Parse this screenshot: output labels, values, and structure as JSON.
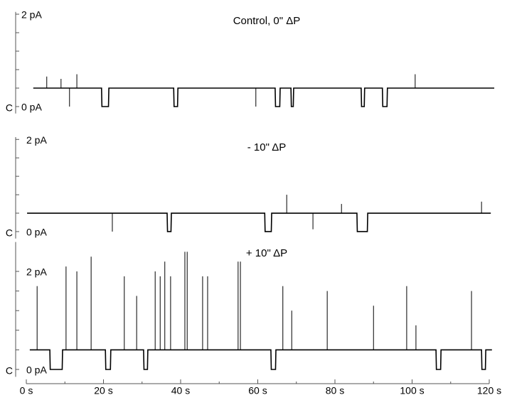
{
  "chart_data": [
    {
      "type": "line",
      "title": "Control, 0\" ΔP",
      "closed_label": "C",
      "x": [
        1.8,
        19.5,
        19.6,
        21.3,
        21.4,
        38.2,
        38.3,
        39.2,
        39.3,
        64.5,
        64.6,
        65.7,
        65.8,
        68.6,
        68.7,
        69.2,
        69.3,
        86.8,
        86.9,
        87.6,
        87.7,
        92.3,
        92.4,
        93.5,
        93.6,
        121.3
      ],
      "values": [
        0.4,
        0.4,
        0,
        0,
        0.4,
        0.4,
        0,
        0,
        0.4,
        0.4,
        0,
        0,
        0.4,
        0.4,
        0,
        0,
        0.4,
        0.4,
        0,
        0,
        0.4,
        0.4,
        0,
        0,
        0.4,
        0.4
      ],
      "open_level": 0.4,
      "spikes": {
        "x": [
          5.3,
          9.0,
          11.2,
          13.1,
          59.5,
          100.8
        ],
        "values": [
          0.65,
          0.6,
          0,
          0.7,
          0,
          0.7
        ]
      },
      "color": "#000000",
      "xlim": [
        0,
        120
      ],
      "ylim": [
        -0.15,
        2.05
      ],
      "yticks": [
        {
          "value": 0,
          "label": "0 pA"
        },
        {
          "value": 2,
          "label": "2 pA"
        }
      ],
      "minor_yticks": [
        0.4,
        0.8,
        1.2,
        1.6
      ]
    },
    {
      "type": "line",
      "title": "- 10\" ΔP",
      "closed_label": "C",
      "x": [
        0.2,
        36.5,
        36.6,
        37.5,
        37.6,
        61.8,
        61.9,
        63.5,
        63.6,
        85.7,
        85.8,
        88.4,
        88.5,
        120.4
      ],
      "values": [
        0.4,
        0.4,
        0,
        0,
        0.4,
        0.4,
        0,
        0,
        0.4,
        0.4,
        0,
        0,
        0.4,
        0.4
      ],
      "open_level": 0.4,
      "spikes": {
        "x": [
          22.3,
          67.5,
          74.3,
          81.7,
          118.0
        ],
        "values": [
          0,
          0.8,
          0.05,
          0.6,
          0.65
        ]
      },
      "color": "#000000",
      "xlim": [
        0,
        120
      ],
      "ylim": [
        -0.15,
        2.05
      ],
      "yticks": [
        {
          "value": 0,
          "label": "0 pA"
        },
        {
          "value": 2,
          "label": "2 pA"
        }
      ],
      "minor_yticks": [
        0.4,
        0.8,
        1.2,
        1.6
      ]
    },
    {
      "type": "line",
      "title": "+ 10\" ΔP",
      "closed_label": "C",
      "x": [
        0.9,
        6.1,
        6.2,
        9.3,
        9.4,
        20.5,
        20.6,
        21.8,
        21.9,
        30.4,
        30.5,
        31.4,
        31.5,
        63.4,
        63.5,
        64.6,
        64.7,
        106.2,
        106.3,
        107.4,
        107.5,
        118.0,
        118.1,
        119.0,
        119.1,
        120.7
      ],
      "values": [
        0.4,
        0.4,
        0,
        0,
        0.4,
        0.4,
        0,
        0,
        0.4,
        0.4,
        0,
        0,
        0.4,
        0.4,
        0,
        0,
        0.4,
        0.4,
        0,
        0,
        0.4,
        0.4,
        0,
        0,
        0.4,
        0.4
      ],
      "open_level": 0.4,
      "spikes": {
        "x": [
          2.8,
          10.3,
          13.1,
          16.8,
          25.4,
          28.6,
          33.4,
          34.7,
          35.9,
          37.4,
          41.1,
          41.7,
          45.7,
          47.0,
          54.9,
          55.5,
          66.5,
          68.8,
          78.0,
          90.0,
          98.6,
          101.0,
          115.4
        ],
        "values": [
          1.7,
          2.1,
          2.0,
          2.3,
          1.9,
          1.5,
          2.0,
          1.9,
          2.2,
          1.9,
          2.4,
          2.4,
          1.9,
          1.9,
          2.2,
          2.2,
          1.7,
          1.2,
          1.6,
          1.3,
          1.7,
          0.9,
          1.6
        ]
      },
      "color": "#000000",
      "xlim": [
        0,
        120
      ],
      "ylim": [
        -0.15,
        2.6
      ],
      "yticks": [
        {
          "value": 0,
          "label": "0 pA"
        },
        {
          "value": 2,
          "label": "2 pA"
        }
      ],
      "minor_yticks": [
        0.4,
        0.8,
        1.2,
        1.6
      ],
      "xticks": [
        {
          "value": 0,
          "label": "0 s"
        },
        {
          "value": 20,
          "label": "20 s"
        },
        {
          "value": 40,
          "label": "40 s"
        },
        {
          "value": 60,
          "label": "60 s"
        },
        {
          "value": 80,
          "label": "80 s"
        },
        {
          "value": 100,
          "label": "100 s"
        },
        {
          "value": 120,
          "label": "120 s"
        }
      ],
      "minor_xticks": [
        10,
        30,
        50,
        70,
        90,
        110
      ]
    }
  ]
}
